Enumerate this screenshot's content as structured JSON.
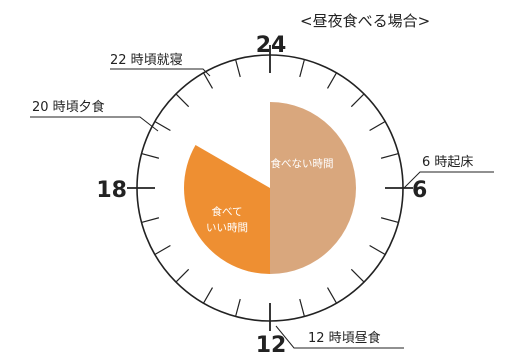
{
  "title": "<昼夜食べる場合>",
  "hour_labels": {
    "h24": "24",
    "h6": "6",
    "h12": "12",
    "h18": "18"
  },
  "annotations": {
    "sleep": "22 時頃就寝",
    "dinner": "20 時頃夕食",
    "wake": "6 時起床",
    "lunch": "12 時頃昼食"
  },
  "segments": {
    "no_eat": {
      "label": "食べない時間",
      "color": "#d9a77d",
      "start_hour": 0,
      "end_hour": 12
    },
    "eat": {
      "label_line1": "食べて",
      "label_line2": "いい時間",
      "color": "#ee8f32",
      "start_hour": 12,
      "end_hour": 20
    }
  },
  "clock": {
    "hours": 24,
    "tick_color": "#222222"
  }
}
